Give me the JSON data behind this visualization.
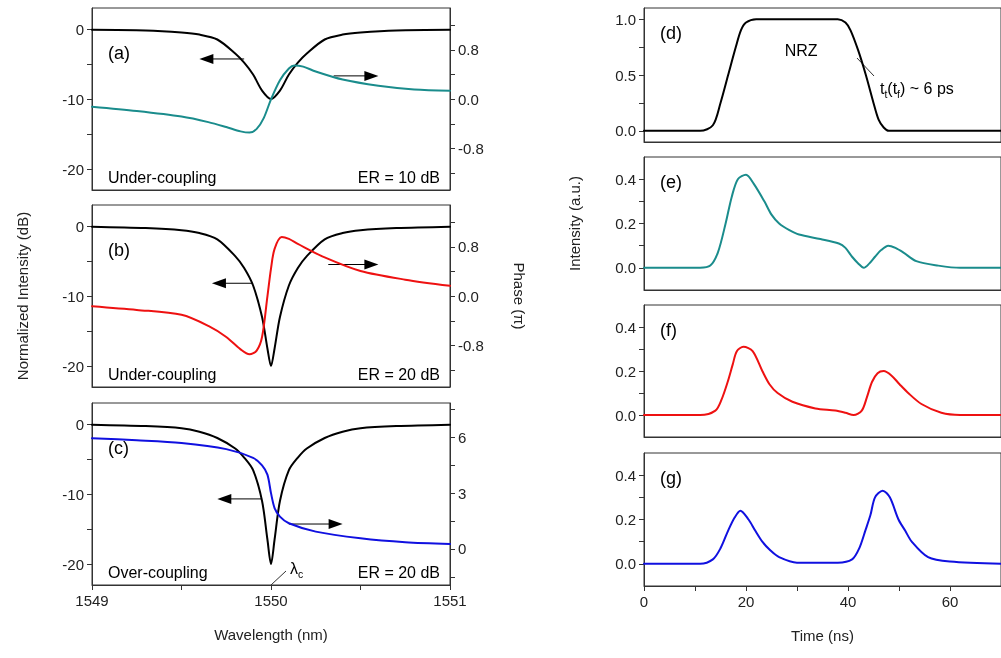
{
  "chart_data": [
    {
      "type": "line",
      "xlim": [
        1549,
        1551
      ],
      "ylim": [
        -23,
        3
      ],
      "yticks": [
        -20,
        {
          "value": -15,
          "label": null
        },
        -10,
        {
          "value": -5,
          "label": null
        },
        0
      ],
      "y2lim": [
        -1.47,
        1.48
      ],
      "y2ticks": [
        {
          "value": -1.2,
          "label": null
        },
        -0.8,
        {
          "value": -0.4,
          "label": null
        },
        {
          "value": 0,
          "label": "0.0"
        },
        {
          "value": 0.4,
          "label": null
        },
        0.8,
        {
          "value": 1.2,
          "label": null
        }
      ],
      "tick_labels": "y",
      "annotations": [
        "(a)",
        "Under-coupling",
        "ER = 10 dB"
      ],
      "series": [
        {
          "color": "#000000",
          "x": [
            1549,
            1549.3,
            1549.5,
            1549.6,
            1549.7,
            1549.8,
            1549.85,
            1549.9,
            1549.95,
            1550,
            1550.05,
            1550.1,
            1550.15,
            1550.2,
            1550.3,
            1550.4,
            1550.5,
            1550.7,
            1551
          ],
          "values": [
            -0.1,
            -0.2,
            -0.5,
            -0.8,
            -1.5,
            -3.5,
            -4.8,
            -6.5,
            -8.8,
            -10,
            -8.8,
            -6.5,
            -4.8,
            -3.5,
            -1.5,
            -0.8,
            -0.5,
            -0.2,
            -0.1
          ]
        },
        {
          "color": "#1a8c8c",
          "axis": "y2",
          "x": [
            1549,
            1549.25,
            1549.5,
            1549.65,
            1549.75,
            1549.83,
            1549.88,
            1549.92,
            1549.96,
            1550,
            1550.05,
            1550.1,
            1550.13,
            1550.18,
            1550.25,
            1550.4,
            1550.6,
            1550.8,
            1551
          ],
          "values": [
            -0.12,
            -0.19,
            -0.28,
            -0.37,
            -0.45,
            -0.52,
            -0.54,
            -0.48,
            -0.3,
            0,
            0.31,
            0.5,
            0.55,
            0.53,
            0.45,
            0.32,
            0.22,
            0.16,
            0.14
          ]
        }
      ]
    },
    {
      "type": "line",
      "xlim": [
        1549,
        1551
      ],
      "ylim": [
        -23,
        3
      ],
      "yticks": [
        -20,
        {
          "value": -15,
          "label": null
        },
        -10,
        {
          "value": -5,
          "label": null
        },
        0
      ],
      "y2lim": [
        -1.47,
        1.48
      ],
      "y2ticks": [
        {
          "value": -1.2,
          "label": null
        },
        -0.8,
        {
          "value": -0.4,
          "label": null
        },
        {
          "value": 0,
          "label": "0.0"
        },
        {
          "value": 0.4,
          "label": null
        },
        0.8,
        {
          "value": 1.2,
          "label": null
        }
      ],
      "ylabel": "Normalized Intensity (dB)",
      "y2label": "Phase (π)",
      "tick_labels": "y",
      "annotations": [
        "(b)",
        "Under-coupling",
        "ER = 20 dB"
      ],
      "series": [
        {
          "color": "#000000",
          "x": [
            1549,
            1549.3,
            1549.5,
            1549.6,
            1549.7,
            1549.8,
            1549.85,
            1549.9,
            1549.95,
            1549.98,
            1550,
            1550.02,
            1550.05,
            1550.1,
            1550.15,
            1550.2,
            1550.3,
            1550.4,
            1550.5,
            1550.7,
            1551
          ],
          "values": [
            -0.1,
            -0.3,
            -0.6,
            -1,
            -1.9,
            -4.3,
            -6,
            -8.5,
            -13,
            -17.5,
            -20,
            -17.5,
            -13,
            -8.5,
            -6,
            -4.3,
            -1.9,
            -1,
            -0.6,
            -0.3,
            -0.1
          ]
        },
        {
          "color": "#ee1111",
          "axis": "y2",
          "x": [
            1549,
            1549.25,
            1549.5,
            1549.65,
            1549.75,
            1549.83,
            1549.88,
            1549.92,
            1549.95,
            1549.98,
            1550,
            1550.02,
            1550.06,
            1550.1,
            1550.15,
            1550.3,
            1550.5,
            1550.75,
            1551
          ],
          "values": [
            -0.16,
            -0.22,
            -0.3,
            -0.48,
            -0.66,
            -0.86,
            -0.94,
            -0.88,
            -0.66,
            0,
            0.45,
            0.77,
            0.96,
            0.93,
            0.85,
            0.63,
            0.41,
            0.27,
            0.17
          ]
        }
      ]
    },
    {
      "type": "line",
      "xlim": [
        1549,
        1551
      ],
      "xticks": [
        1549,
        {
          "value": 1549.5,
          "label": null
        },
        1550,
        {
          "value": 1550.5,
          "label": null
        },
        1551
      ],
      "ylim": [
        -23,
        3
      ],
      "yticks": [
        -20,
        {
          "value": -15,
          "label": null
        },
        -10,
        {
          "value": -5,
          "label": null
        },
        0
      ],
      "y2lim": [
        -1.94,
        7.85
      ],
      "y2ticks": [
        {
          "value": -1.5,
          "label": null
        },
        0,
        {
          "value": 1.5,
          "label": null
        },
        3,
        {
          "value": 4.5,
          "label": null
        },
        6,
        {
          "value": 7.5,
          "label": null
        }
      ],
      "xlabel": "Wavelength (nm)",
      "annotations": [
        "(c)",
        "Over-coupling",
        "ER = 20 dB",
        "λ$_{c}$"
      ],
      "series": [
        {
          "color": "#000000",
          "x": [
            1549,
            1549.3,
            1549.5,
            1549.6,
            1549.7,
            1549.8,
            1549.85,
            1549.9,
            1549.95,
            1549.98,
            1550,
            1550.02,
            1550.05,
            1550.1,
            1550.15,
            1550.2,
            1550.3,
            1550.4,
            1550.5,
            1550.7,
            1551
          ],
          "values": [
            -0.1,
            -0.3,
            -0.6,
            -1.1,
            -2,
            -3.5,
            -4.8,
            -6.6,
            -11,
            -16.5,
            -20,
            -16.5,
            -11,
            -6.6,
            -4.8,
            -3.5,
            -2,
            -1.1,
            -0.6,
            -0.3,
            -0.1
          ]
        },
        {
          "color": "#1010e0",
          "axis": "y2",
          "x": [
            1549,
            1549.25,
            1549.5,
            1549.75,
            1549.9,
            1549.95,
            1549.98,
            1550,
            1550.02,
            1550.05,
            1550.1,
            1550.25,
            1550.5,
            1550.75,
            1551
          ],
          "values": [
            5.96,
            5.85,
            5.7,
            5.37,
            4.9,
            4.5,
            4,
            3,
            2.2,
            1.74,
            1.38,
            0.93,
            0.57,
            0.36,
            0.27
          ]
        }
      ]
    },
    {
      "type": "line",
      "xlim": [
        0,
        70
      ],
      "ylim": [
        -0.1,
        1.1
      ],
      "yticks": [
        {
          "value": 0,
          "label": "0.0"
        },
        {
          "value": 0.25,
          "label": null
        },
        0.5,
        {
          "value": 0.75,
          "label": null
        },
        {
          "value": 1,
          "label": "1.0"
        }
      ],
      "tick_labels": "y",
      "annotations": [
        "(d)",
        "NRZ",
        "t$_{t}$(t$_{f}$) ~ 6 ps"
      ],
      "x": [
        0,
        11,
        13.5,
        15,
        16.5,
        18,
        19,
        20,
        22,
        30,
        38,
        39.5,
        40.5,
        42,
        43.5,
        45,
        46,
        47,
        48,
        60,
        70
      ],
      "series": [
        {
          "color": "#000000",
          "values": [
            0,
            0,
            0.05,
            0.25,
            0.5,
            0.75,
            0.9,
            0.97,
            1,
            1,
            1,
            0.97,
            0.9,
            0.72,
            0.5,
            0.25,
            0.1,
            0.03,
            0,
            0,
            0
          ]
        }
      ]
    },
    {
      "type": "line",
      "xlim": [
        0,
        70
      ],
      "ylim": [
        -0.1,
        0.5
      ],
      "yticks": [
        {
          "value": 0,
          "label": "0.0"
        },
        {
          "value": 0.1,
          "label": null
        },
        0.2,
        {
          "value": 0.3,
          "label": null
        },
        0.4
      ],
      "ylabel": "Intensity (a.u.)",
      "tick_labels": "y",
      "annotations": [
        "(e)"
      ],
      "x": [
        0,
        11,
        13,
        14.5,
        16,
        17.2,
        18.4,
        20,
        21.5,
        23.6,
        25,
        26.5,
        28.5,
        30.4,
        34.6,
        38.2,
        39.5,
        40.8,
        42,
        43.1,
        44.2,
        45.3,
        46.5,
        47.9,
        49.3,
        50.8,
        53.4,
        57.7,
        62,
        70
      ],
      "series": [
        {
          "color": "#1a8c8c",
          "values": [
            0,
            0,
            0.01,
            0.07,
            0.2,
            0.32,
            0.4,
            0.42,
            0.38,
            0.3,
            0.24,
            0.2,
            0.17,
            0.15,
            0.13,
            0.11,
            0.09,
            0.05,
            0.02,
            0,
            0.02,
            0.05,
            0.08,
            0.1,
            0.09,
            0.07,
            0.03,
            0.01,
            0,
            0
          ]
        }
      ]
    },
    {
      "type": "line",
      "xlim": [
        0,
        70
      ],
      "ylim": [
        -0.1,
        0.5
      ],
      "yticks": [
        {
          "value": 0,
          "label": "0.0"
        },
        {
          "value": 0.1,
          "label": null
        },
        0.2,
        {
          "value": 0.3,
          "label": null
        },
        0.4
      ],
      "tick_labels": "y",
      "annotations": [
        "(f)"
      ],
      "x": [
        0,
        11,
        14,
        15.2,
        16.4,
        17.4,
        18.2,
        19.5,
        21.3,
        23.2,
        24.6,
        26.2,
        29.1,
        33.6,
        37.5,
        39.5,
        41.1,
        42.7,
        43.7,
        44.7,
        45.8,
        47,
        48.5,
        50.1,
        51.8,
        54.4,
        58.3,
        62,
        70
      ],
      "series": [
        {
          "color": "#ee1111",
          "values": [
            0,
            0,
            0.02,
            0.07,
            0.15,
            0.23,
            0.29,
            0.31,
            0.29,
            0.2,
            0.14,
            0.1,
            0.06,
            0.03,
            0.02,
            0.01,
            0,
            0.02,
            0.08,
            0.15,
            0.19,
            0.2,
            0.18,
            0.14,
            0.1,
            0.05,
            0.01,
            0,
            0
          ]
        }
      ]
    },
    {
      "type": "line",
      "xlim": [
        0,
        70
      ],
      "xticks": [
        0,
        {
          "value": 10,
          "label": null
        },
        20,
        {
          "value": 30,
          "label": null
        },
        40,
        {
          "value": 50,
          "label": null
        },
        60
      ],
      "ylim": [
        -0.1,
        0.5
      ],
      "yticks": [
        {
          "value": 0,
          "label": "0.0"
        },
        {
          "value": 0.1,
          "label": null
        },
        0.2,
        {
          "value": 0.3,
          "label": null
        },
        0.4
      ],
      "xlabel": "Time (ns)",
      "annotations": [
        "(g)"
      ],
      "x": [
        0,
        11,
        13.5,
        15,
        16.5,
        17.8,
        18.9,
        20.5,
        21.8,
        23.2,
        24.8,
        26.5,
        30,
        38,
        40.8,
        42.2,
        43.4,
        44.4,
        45.3,
        46.8,
        48.2,
        49.9,
        51.2,
        52.5,
        55.7,
        60,
        70
      ],
      "series": [
        {
          "color": "#1010e0",
          "values": [
            0,
            0,
            0.02,
            0.07,
            0.15,
            0.21,
            0.24,
            0.2,
            0.15,
            0.1,
            0.06,
            0.03,
            0.005,
            0.005,
            0.02,
            0.07,
            0.15,
            0.22,
            0.3,
            0.33,
            0.3,
            0.2,
            0.15,
            0.1,
            0.03,
            0.01,
            0
          ]
        }
      ]
    }
  ]
}
